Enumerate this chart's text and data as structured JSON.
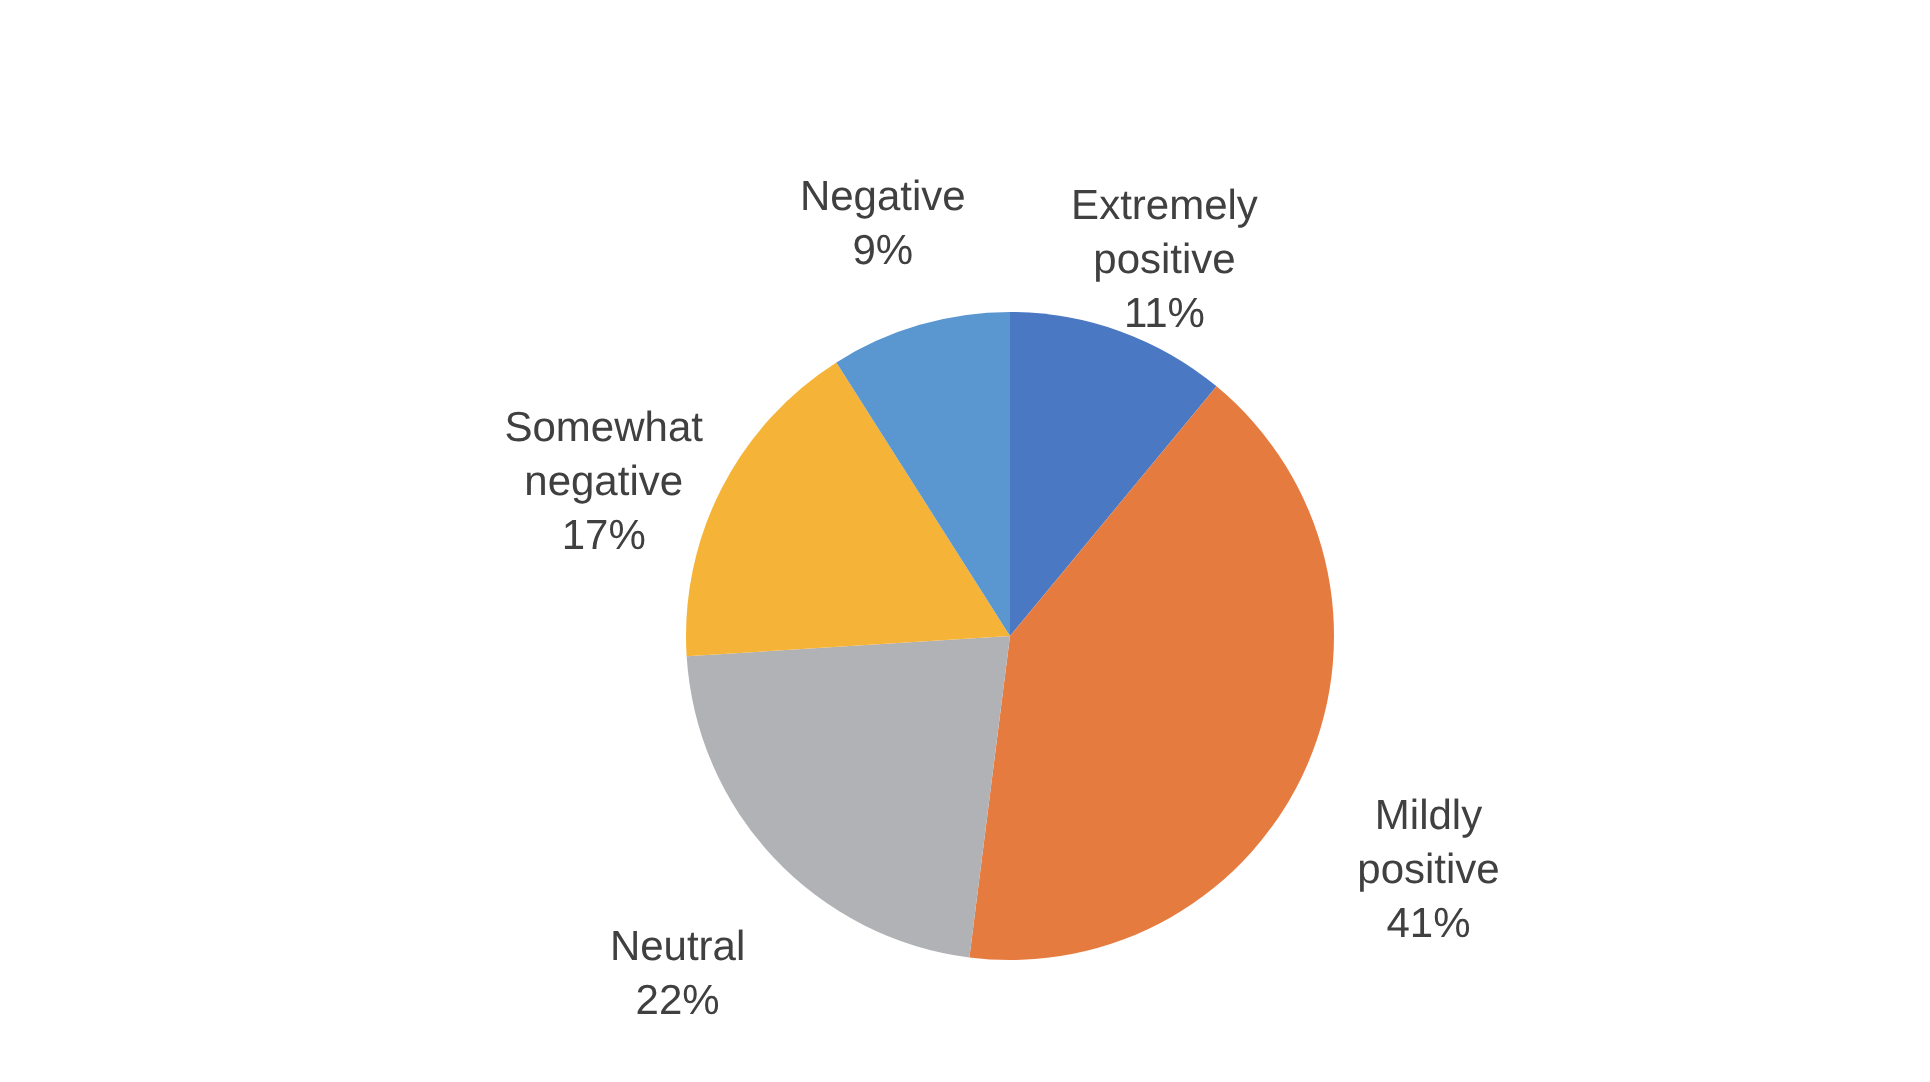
{
  "chart_data": {
    "type": "pie",
    "categories": [
      "Extremely positive",
      "Mildly positive",
      "Neutral",
      "Somewhat negative",
      "Negative"
    ],
    "values": [
      11,
      41,
      22,
      17,
      9
    ],
    "value_labels": [
      "11%",
      "41%",
      "22%",
      "17%",
      "9%"
    ],
    "colors": [
      "#4a78c2",
      "#e67b40",
      "#b1b2b6",
      "#f5b437",
      "#5a97d0"
    ]
  }
}
